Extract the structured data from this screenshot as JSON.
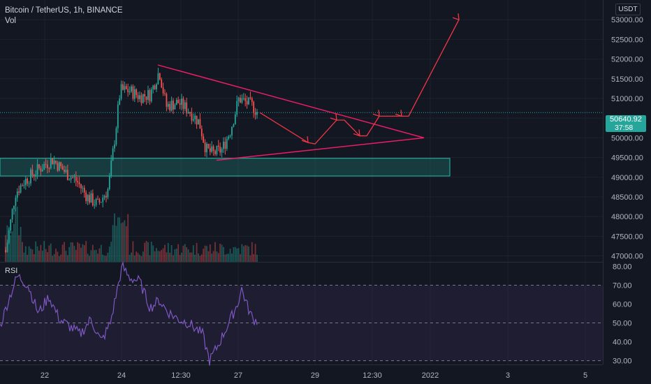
{
  "header": {
    "title": "Bitcoin / TetherUS, 1h, BINANCE",
    "sub": "Vol"
  },
  "rsi_label": "RSI",
  "currency": "USDT",
  "last_price": {
    "value": "50640.92",
    "countdown": "37:58"
  },
  "colors": {
    "up": "#26a69a",
    "down": "#ef5350",
    "drawing": "#e91e63",
    "arrow": "#f23645",
    "rsi": "#7e57c2",
    "zone": "#26a69a"
  },
  "chart_data": [
    {
      "type": "candlestick",
      "title": "Bitcoin / TetherUS, 1h, BINANCE",
      "x_ticks": [
        "22",
        "24",
        "12:30",
        "27",
        "29",
        "12:30",
        "2022",
        "3",
        "5"
      ],
      "y_ticks": [
        47000,
        47500,
        48000,
        48500,
        49000,
        49500,
        50000,
        50500,
        51000,
        51500,
        52000,
        52500,
        53000
      ],
      "ylim": [
        46850,
        53500
      ],
      "last_price": 50640.92,
      "support_zone": [
        49030,
        49480
      ],
      "triangle": {
        "upper_start": [
          "24",
          51850
        ],
        "apex": 50000,
        "lower_start": [
          "27",
          49430
        ]
      },
      "projection_path": [
        50640,
        49880,
        50450,
        50050,
        50550,
        51250,
        50550,
        53000
      ],
      "volume": {
        "label": "Vol"
      }
    },
    {
      "type": "line",
      "title": "RSI",
      "y_ticks": [
        30,
        40,
        50,
        60,
        70,
        80
      ],
      "ylim": [
        28,
        82
      ],
      "bands": [
        30,
        50,
        70
      ],
      "last_value": 51
    }
  ]
}
